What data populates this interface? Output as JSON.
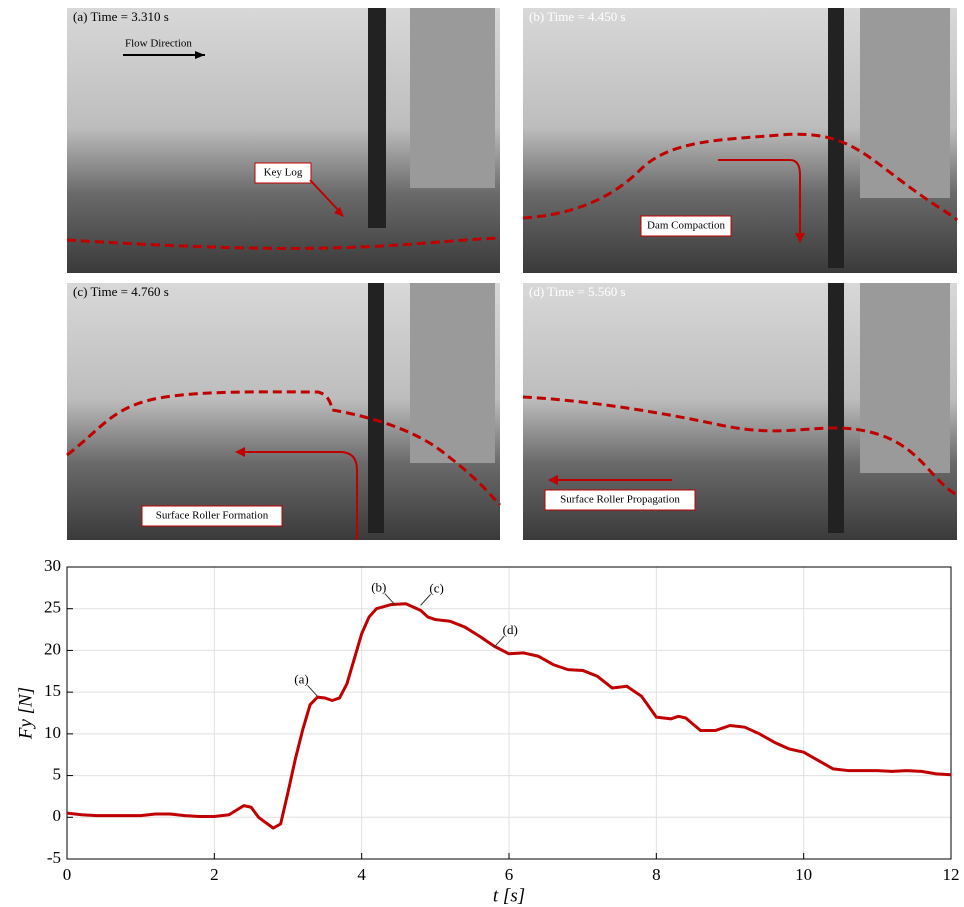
{
  "panels": [
    {
      "title": "(a) Time = 3.310 s",
      "labels": [
        "Flow Direction",
        "Key Log"
      ]
    },
    {
      "title": "(b) Time = 4.450 s",
      "labels": [
        "Dam Compaction"
      ]
    },
    {
      "title": "(c) Time = 4.760 s",
      "labels": [
        "Surface Roller Formation"
      ]
    },
    {
      "title": "(d) Time = 5.560 s",
      "labels": [
        "Surface Roller Propagation"
      ]
    }
  ],
  "chart_data": {
    "type": "line",
    "xlabel": "t [s]",
    "ylabel": "Fy [N]",
    "x": [
      0,
      0.2,
      0.4,
      0.6,
      0.8,
      1.0,
      1.2,
      1.4,
      1.6,
      1.8,
      2.0,
      2.2,
      2.4,
      2.5,
      2.6,
      2.8,
      2.9,
      3.0,
      3.1,
      3.2,
      3.3,
      3.4,
      3.5,
      3.6,
      3.7,
      3.8,
      3.9,
      4.0,
      4.1,
      4.2,
      4.4,
      4.6,
      4.8,
      4.9,
      5.0,
      5.2,
      5.4,
      5.6,
      5.8,
      6.0,
      6.2,
      6.4,
      6.6,
      6.8,
      7.0,
      7.2,
      7.4,
      7.6,
      7.8,
      8.0,
      8.2,
      8.3,
      8.4,
      8.6,
      8.8,
      9.0,
      9.2,
      9.4,
      9.6,
      9.8,
      10.0,
      10.2,
      10.4,
      10.6,
      10.8,
      11.0,
      11.2,
      11.4,
      11.6,
      11.8,
      12.0
    ],
    "series": [
      {
        "color": "#c00000",
        "values": [
          0.5,
          0.3,
          0.2,
          0.2,
          0.2,
          0.2,
          0.4,
          0.4,
          0.2,
          0.1,
          0.1,
          0.3,
          1.4,
          1.2,
          0.0,
          -1.3,
          -0.8,
          3,
          7,
          10.5,
          13.5,
          14.4,
          14.3,
          14.0,
          14.3,
          16,
          19,
          22,
          24,
          25,
          25.5,
          25.6,
          24.8,
          24,
          23.7,
          23.5,
          22.8,
          21.7,
          20.5,
          19.6,
          19.7,
          19.3,
          18.3,
          17.7,
          17.6,
          16.9,
          15.5,
          15.7,
          14.5,
          12.0,
          11.8,
          12.1,
          11.9,
          10.4,
          10.4,
          11.0,
          10.8,
          10.0,
          9.0,
          8.2,
          7.8,
          6.8,
          5.8,
          5.6,
          5.6,
          5.6,
          5.5,
          5.6,
          5.5,
          5.2,
          5.1
        ]
      }
    ],
    "annotations": [
      {
        "text": "(a)",
        "x": 3.4,
        "y": 14.5
      },
      {
        "text": "(b)",
        "x": 4.45,
        "y": 25.5
      },
      {
        "text": "(c)",
        "x": 4.8,
        "y": 25.4
      },
      {
        "text": "(d)",
        "x": 5.8,
        "y": 20.4
      }
    ],
    "xlim": [
      0,
      12
    ],
    "xticks": [
      0,
      2,
      4,
      6,
      8,
      10,
      12
    ],
    "ylim": [
      -5,
      30
    ],
    "yticks": [
      -5,
      0,
      5,
      10,
      15,
      20,
      25,
      30
    ],
    "grid": true
  }
}
